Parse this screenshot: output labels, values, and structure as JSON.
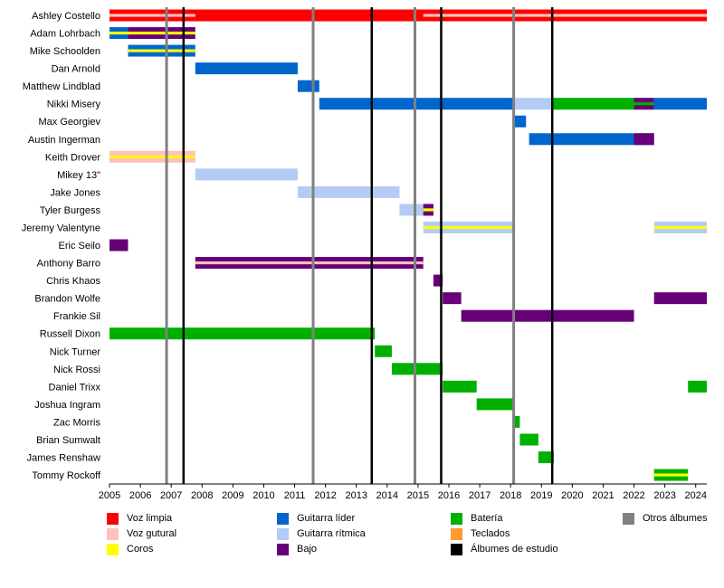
{
  "chart_data": {
    "type": "timeline",
    "title": "",
    "xlabel": "",
    "ylabel": "",
    "xlim": [
      2005.0,
      2024.36
    ],
    "x_ticks": [
      2005,
      2006,
      2007,
      2008,
      2009,
      2010,
      2011,
      2012,
      2013,
      2014,
      2015,
      2016,
      2017,
      2018,
      2019,
      2020,
      2021,
      2022,
      2023,
      2024
    ],
    "members": [
      "Ashley Costello",
      "Adam Lohrbach",
      "Mike Schoolden",
      "Dan Arnold",
      "Matthew Lindblad",
      "Nikki Misery",
      "Max Georgiev",
      "Austin Ingerman",
      "Keith Drover",
      "Mikey 13\"",
      "Jake Jones",
      "Tyler Burgess",
      "Jeremy Valentyne",
      "Eric Seilo",
      "Anthony Barro",
      "Chris Khaos",
      "Brandon Wolfe",
      "Frankie Sil",
      "Russell Dixon",
      "Nick Turner",
      "Nick Rossi",
      "Daniel Trixx",
      "Joshua Ingram",
      "Zac Morris",
      "Brian Sumwalt",
      "James Renshaw",
      "Tommy Rockoff"
    ],
    "roles": {
      "voz_limpia": {
        "label": "Voz limpia",
        "color": "#ff0000"
      },
      "voz_gutural": {
        "label": "Voz gutural",
        "color": "#ffc0c0"
      },
      "coros": {
        "label": "Coros",
        "color": "#ffff00"
      },
      "guitarra_lider": {
        "label": "Guitarra líder",
        "color": "#0066cc"
      },
      "guitarra_ritmica": {
        "label": "Guitarra rítmica",
        "color": "#b4ccf5"
      },
      "bajo": {
        "label": "Bajo",
        "color": "#660077"
      },
      "bateria": {
        "label": "Batería",
        "color": "#00b000"
      },
      "teclados": {
        "label": "Teclados",
        "color": "#ff9933"
      },
      "albumes_estudio": {
        "label": "Álbumes de estudio",
        "color": "#000000"
      },
      "otros_albumes": {
        "label": "Otros álbumes",
        "color": "#808080"
      }
    },
    "bars": [
      {
        "member": "Ashley Costello",
        "start": 2005.0,
        "end": 2024.36,
        "role": "voz_limpia",
        "secondary": "voz_gutural",
        "secondary_start": 2005.0,
        "secondary_end": 2007.78
      },
      {
        "member": "Ashley Costello",
        "start": 2015.17,
        "end": 2024.36,
        "role": "voz_limpia",
        "secondary": "voz_gutural"
      },
      {
        "member": "Adam Lohrbach",
        "start": 2005.0,
        "end": 2005.6,
        "role": "guitarra_lider",
        "secondary": "coros"
      },
      {
        "member": "Adam Lohrbach",
        "start": 2005.6,
        "end": 2007.78,
        "role": "bajo",
        "secondary": "coros"
      },
      {
        "member": "Mike Schoolden",
        "start": 2005.6,
        "end": 2007.78,
        "role": "guitarra_lider",
        "secondary": "coros"
      },
      {
        "member": "Dan Arnold",
        "start": 2007.78,
        "end": 2011.1,
        "role": "guitarra_lider"
      },
      {
        "member": "Matthew Lindblad",
        "start": 2011.1,
        "end": 2011.8,
        "role": "guitarra_lider"
      },
      {
        "member": "Nikki Misery",
        "start": 2011.8,
        "end": 2018.1,
        "role": "guitarra_lider"
      },
      {
        "member": "Nikki Misery",
        "start": 2018.1,
        "end": 2022.65,
        "role": "guitarra_ritmica"
      },
      {
        "member": "Nikki Misery",
        "start": 2019.35,
        "end": 2022.0,
        "role": "bateria"
      },
      {
        "member": "Nikki Misery",
        "start": 2022.0,
        "end": 2022.65,
        "role": "bajo",
        "secondary": "bateria"
      },
      {
        "member": "Nikki Misery",
        "start": 2022.65,
        "end": 2024.36,
        "role": "guitarra_lider"
      },
      {
        "member": "Max Georgiev",
        "start": 2018.1,
        "end": 2018.5,
        "role": "guitarra_lider"
      },
      {
        "member": "Austin Ingerman",
        "start": 2018.6,
        "end": 2022.65,
        "role": "guitarra_lider"
      },
      {
        "member": "Austin Ingerman",
        "start": 2022.0,
        "end": 2022.65,
        "role": "bajo"
      },
      {
        "member": "Keith Drover",
        "start": 2005.0,
        "end": 2007.78,
        "role": "voz_gutural",
        "secondary": "coros"
      },
      {
        "member": "Mikey 13\"",
        "start": 2007.78,
        "end": 2011.1,
        "role": "guitarra_ritmica"
      },
      {
        "member": "Jake Jones",
        "start": 2011.1,
        "end": 2014.4,
        "role": "guitarra_ritmica"
      },
      {
        "member": "Tyler Burgess",
        "start": 2014.4,
        "end": 2015.17,
        "role": "guitarra_ritmica"
      },
      {
        "member": "Tyler Burgess",
        "start": 2015.17,
        "end": 2015.5,
        "role": "bajo",
        "secondary": "coros"
      },
      {
        "member": "Jeremy Valentyne",
        "start": 2015.17,
        "end": 2018.1,
        "role": "guitarra_ritmica",
        "secondary": "coros"
      },
      {
        "member": "Jeremy Valentyne",
        "start": 2022.65,
        "end": 2024.36,
        "role": "guitarra_ritmica",
        "secondary": "coros"
      },
      {
        "member": "Eric Seilo",
        "start": 2005.0,
        "end": 2005.6,
        "role": "bajo"
      },
      {
        "member": "Anthony Barro",
        "start": 2007.78,
        "end": 2015.17,
        "role": "bajo",
        "secondary": "voz_gutural"
      },
      {
        "member": "Chris Khaos",
        "start": 2015.5,
        "end": 2015.8,
        "role": "bajo"
      },
      {
        "member": "Brandon Wolfe",
        "start": 2015.8,
        "end": 2016.4,
        "role": "bajo"
      },
      {
        "member": "Brandon Wolfe",
        "start": 2022.65,
        "end": 2024.36,
        "role": "bajo"
      },
      {
        "member": "Frankie Sil",
        "start": 2016.4,
        "end": 2022.0,
        "role": "bajo"
      },
      {
        "member": "Russell Dixon",
        "start": 2005.0,
        "end": 2013.6,
        "role": "bateria"
      },
      {
        "member": "Nick Turner",
        "start": 2013.6,
        "end": 2014.15,
        "role": "bateria"
      },
      {
        "member": "Nick Rossi",
        "start": 2014.15,
        "end": 2015.8,
        "role": "bateria"
      },
      {
        "member": "Daniel Trixx",
        "start": 2015.8,
        "end": 2016.9,
        "role": "bateria"
      },
      {
        "member": "Daniel Trixx",
        "start": 2023.75,
        "end": 2024.36,
        "role": "bateria"
      },
      {
        "member": "Joshua Ingram",
        "start": 2016.9,
        "end": 2018.1,
        "role": "bateria"
      },
      {
        "member": "Zac Morris",
        "start": 2018.1,
        "end": 2018.3,
        "role": "bateria"
      },
      {
        "member": "Brian Sumwalt",
        "start": 2018.3,
        "end": 2018.9,
        "role": "bateria"
      },
      {
        "member": "James Renshaw",
        "start": 2018.9,
        "end": 2019.4,
        "role": "bateria"
      },
      {
        "member": "Tommy Rockoff",
        "start": 2022.65,
        "end": 2023.75,
        "role": "bateria",
        "secondary": "coros"
      }
    ],
    "studio_albums": [
      2007.4,
      2013.5,
      2015.75,
      2019.35
    ],
    "other_albums": [
      2006.85,
      2011.6,
      2014.9,
      2018.1
    ],
    "legend": {
      "placement": "bottom",
      "columns": [
        [
          "voz_limpia",
          "voz_gutural",
          "coros"
        ],
        [
          "guitarra_lider",
          "guitarra_ritmica",
          "bajo"
        ],
        [
          "bateria",
          "teclados",
          "albumes_estudio"
        ],
        [
          "otros_albumes"
        ]
      ]
    }
  }
}
